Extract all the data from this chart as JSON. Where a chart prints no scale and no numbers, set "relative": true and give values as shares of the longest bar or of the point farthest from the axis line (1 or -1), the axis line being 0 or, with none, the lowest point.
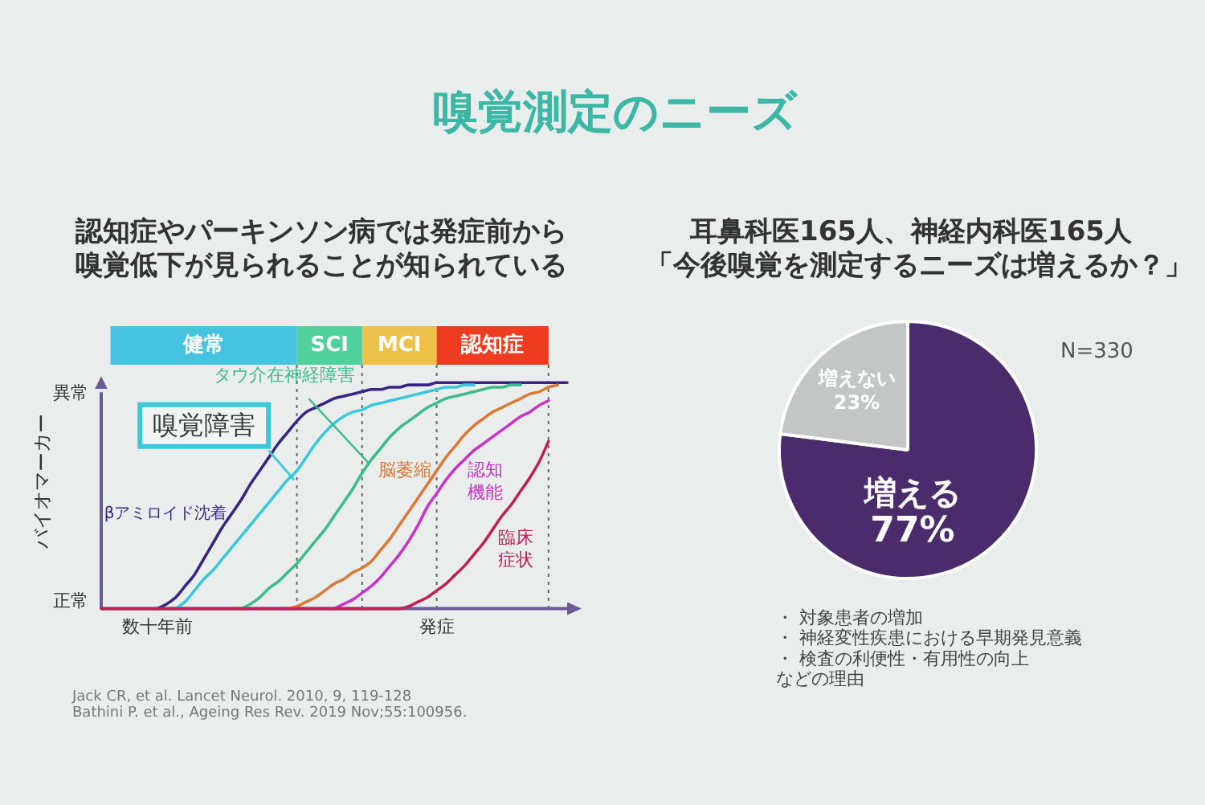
{
  "chart_data": [
    {
      "type": "other",
      "title": "嗅覚測定のニーズ"
    },
    {
      "type": "line",
      "title": "認知症やパーキンソン病では発症前から嗅覚低下が見られることが知られている",
      "ylabel": "バイオマーカー",
      "relative": true,
      "categories": [
        null,
        null,
        null,
        null,
        null,
        null,
        "数十年前",
        null,
        null,
        null,
        null,
        null,
        null,
        null,
        null,
        null,
        null,
        null,
        null,
        null,
        null,
        null,
        null,
        null,
        null,
        null,
        null,
        null,
        null,
        null,
        null,
        null,
        null,
        null,
        null,
        null,
        "発症",
        null,
        null,
        null,
        null,
        null,
        null,
        null,
        null,
        null,
        null,
        null,
        null,
        null,
        null
      ],
      "series": [
        {
          "name": "βアミロイド沈着",
          "color": "#3a2585",
          "values": [
            null,
            null,
            null,
            null,
            null,
            null,
            0,
            0.02,
            0.05,
            0.1,
            0.15,
            0.22,
            0.29,
            0.36,
            0.42,
            0.48,
            0.55,
            0.61,
            0.67,
            0.73,
            0.78,
            0.83,
            0.87,
            0.89,
            0.91,
            0.93,
            0.94,
            0.95,
            0.96,
            0.97,
            0.97,
            0.98,
            0.98,
            0.99,
            0.99,
            0.99,
            1,
            1,
            1,
            1,
            1,
            1,
            1,
            1,
            1,
            1,
            1,
            1,
            1,
            1,
            1
          ]
        },
        {
          "name": "嗅覚障害",
          "color": "#3cc8dc",
          "values": [
            null,
            null,
            null,
            null,
            null,
            null,
            null,
            null,
            0,
            0.03,
            0.08,
            0.13,
            0.17,
            0.22,
            0.27,
            0.32,
            0.37,
            0.42,
            0.47,
            0.52,
            0.57,
            0.61,
            0.67,
            0.73,
            0.78,
            0.82,
            0.85,
            0.87,
            0.88,
            0.9,
            0.91,
            0.92,
            0.93,
            0.94,
            0.95,
            0.96,
            0.97,
            0.98,
            0.98,
            0.99,
            0.99,
            null,
            null,
            null,
            null,
            null,
            null,
            null,
            null,
            null,
            null
          ]
        },
        {
          "name": "タウ介在神経障害",
          "color": "#3dbb8c",
          "values": [
            null,
            null,
            null,
            null,
            null,
            null,
            null,
            null,
            null,
            null,
            null,
            null,
            null,
            null,
            null,
            0,
            0.02,
            0.05,
            0.09,
            0.12,
            0.16,
            0.2,
            0.25,
            0.3,
            0.35,
            0.41,
            0.47,
            0.53,
            0.6,
            0.66,
            0.71,
            0.76,
            0.8,
            0.83,
            0.86,
            0.89,
            0.91,
            0.93,
            0.94,
            0.95,
            0.96,
            0.97,
            0.98,
            0.98,
            0.99,
            0.99,
            null,
            null,
            null,
            null,
            null
          ]
        },
        {
          "name": "脳萎縮",
          "color": "#d97a3a",
          "values": [
            null,
            null,
            null,
            null,
            null,
            null,
            null,
            null,
            null,
            null,
            null,
            null,
            null,
            null,
            null,
            null,
            null,
            null,
            null,
            null,
            0,
            0.01,
            0.03,
            0.05,
            0.08,
            0.11,
            0.13,
            0.16,
            0.18,
            0.21,
            0.26,
            0.31,
            0.37,
            0.43,
            0.49,
            0.55,
            0.61,
            0.67,
            0.72,
            0.77,
            0.81,
            0.84,
            0.87,
            0.89,
            0.91,
            0.93,
            0.95,
            0.96,
            0.98,
            0.99,
            null
          ]
        },
        {
          "name": "認知機能",
          "color": "#c833c8",
          "values": [
            null,
            null,
            null,
            null,
            null,
            null,
            null,
            null,
            null,
            null,
            null,
            null,
            null,
            null,
            null,
            null,
            null,
            null,
            null,
            null,
            null,
            null,
            null,
            null,
            null,
            0,
            0.02,
            0.04,
            0.07,
            0.1,
            0.14,
            0.19,
            0.24,
            0.3,
            0.37,
            0.45,
            0.51,
            0.57,
            0.62,
            0.66,
            0.7,
            0.73,
            0.76,
            0.79,
            0.82,
            0.85,
            0.87,
            0.9,
            0.92,
            null,
            null
          ]
        },
        {
          "name": "臨床症状",
          "color": "#c02058",
          "values": [
            0,
            0,
            0,
            0,
            0,
            0,
            0,
            0,
            0,
            0,
            0,
            0,
            0,
            0,
            0,
            0,
            0,
            0,
            0,
            0,
            0,
            0,
            0,
            0,
            0,
            0,
            0,
            0,
            0,
            0,
            0,
            0,
            0,
            0.01,
            0.03,
            0.05,
            0.08,
            0.11,
            0.15,
            0.19,
            0.24,
            0.29,
            0.35,
            0.41,
            0.46,
            0.52,
            0.58,
            0.65,
            0.74,
            null,
            null
          ]
        }
      ],
      "annotations": [
        "異常",
        "正常",
        "健常",
        "SCI",
        "MCI",
        "認知症",
        "Jack CR, et al. Lancet Neurol. 2010, 9, 119-128",
        "Bathini P. et al., Ageing Res Rev. 2019 Nov;55:100956."
      ]
    },
    {
      "type": "pie",
      "title": "耳鼻科医165人、神経内科医165人",
      "subtitle": "「今後嗅覚を測定するニーズは増えるか？」",
      "categories": [
        "増える",
        "増えない"
      ],
      "values": [
        77,
        23
      ],
      "colors": [
        "#4a2b6c",
        "#c4c6c6"
      ],
      "value_labels": [
        "77%",
        "23%"
      ],
      "annotations": [
        "N=330",
        "・ 対象患者の増加",
        "・ 神経変性疾患における早期発見意義",
        "・ 検査の利便性・有用性の向上",
        "などの理由"
      ]
    }
  ]
}
